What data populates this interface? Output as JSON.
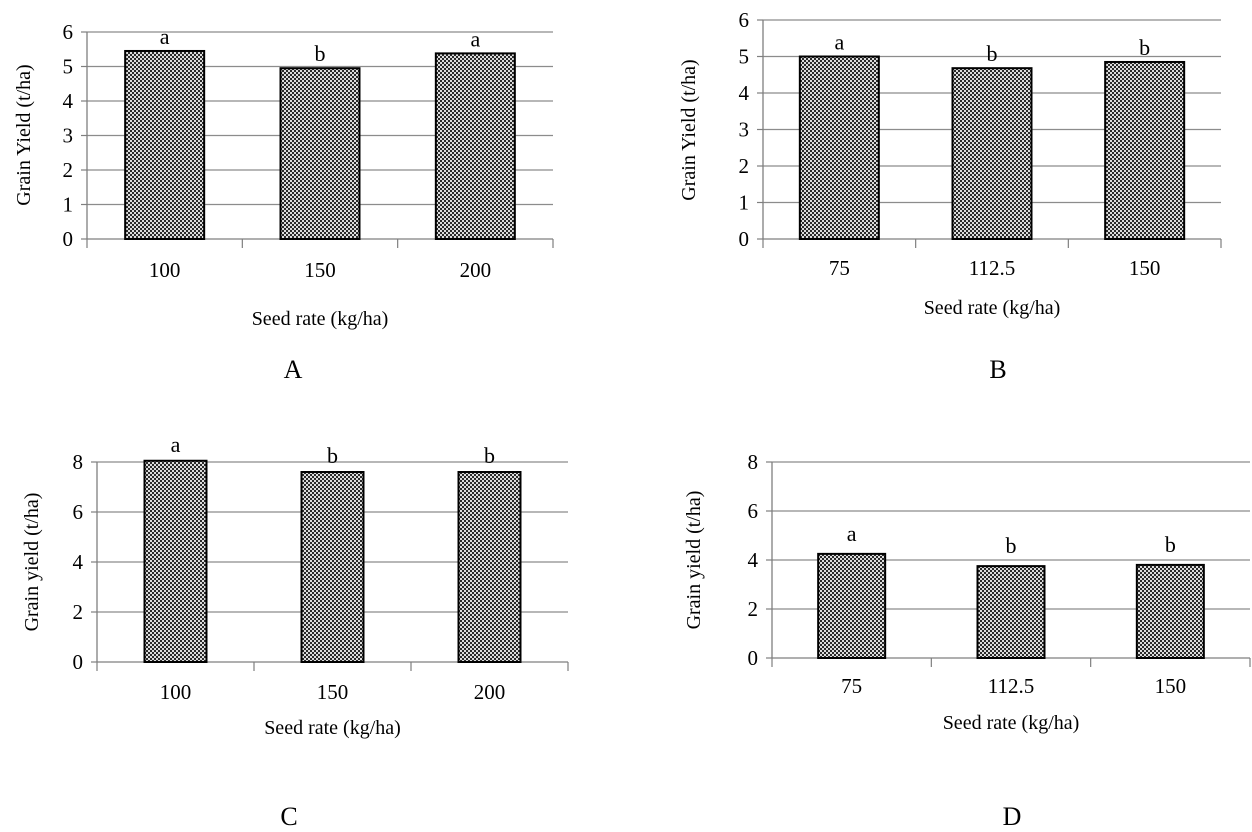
{
  "colors": {
    "bar_fill": "#dcdcdc",
    "bar_dot": "#2a2a2a",
    "bar_edge": "#000000",
    "gridline": "#8c8c8c",
    "axis": "#7f7f7f"
  },
  "chart_data": [
    {
      "panel": "A",
      "type": "bar",
      "categories": [
        "100",
        "150",
        "200"
      ],
      "values": [
        5.45,
        4.95,
        5.38
      ],
      "letters": [
        "a",
        "b",
        "a"
      ],
      "title": "",
      "xlabel": "Seed rate (kg/ha)",
      "ylabel": "Grain Yield (t/ha)",
      "ylim": [
        0,
        6
      ],
      "yticks": [
        "0",
        "1",
        "2",
        "3",
        "4",
        "5",
        "6"
      ],
      "grid": true,
      "legend": "none"
    },
    {
      "panel": "B",
      "type": "bar",
      "categories": [
        "75",
        "112.5",
        "150"
      ],
      "values": [
        5.0,
        4.68,
        4.85
      ],
      "letters": [
        "a",
        "b",
        "b"
      ],
      "title": "",
      "xlabel": "Seed rate (kg/ha)",
      "ylabel": "Grain Yield (t/ha)",
      "ylim": [
        0,
        6
      ],
      "yticks": [
        "0",
        "1",
        "2",
        "3",
        "4",
        "5",
        "6"
      ],
      "grid": true,
      "legend": "none"
    },
    {
      "panel": "C",
      "type": "bar",
      "categories": [
        "100",
        "150",
        "200"
      ],
      "values": [
        8.05,
        7.6,
        7.6
      ],
      "letters": [
        "a",
        "b",
        "b"
      ],
      "title": "",
      "xlabel": "Seed rate (kg/ha)",
      "ylabel": "Grain yield (t/ha)",
      "ylim": [
        0,
        8
      ],
      "yticks": [
        "0",
        "2",
        "4",
        "6",
        "8"
      ],
      "grid": true,
      "legend": "none"
    },
    {
      "panel": "D",
      "type": "bar",
      "categories": [
        "75",
        "112.5",
        "150"
      ],
      "values": [
        4.25,
        3.75,
        3.8
      ],
      "letters": [
        "a",
        "b",
        "b"
      ],
      "title": "",
      "xlabel": "Seed rate (kg/ha)",
      "ylabel": "Grain yield (t/ha)",
      "ylim": [
        0,
        8
      ],
      "yticks": [
        "0",
        "2",
        "4",
        "6",
        "8"
      ],
      "grid": true,
      "legend": "none"
    }
  ]
}
